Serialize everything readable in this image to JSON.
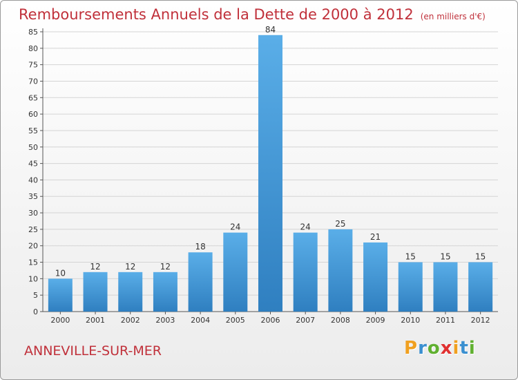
{
  "chart_data": {
    "type": "bar",
    "title": "Remboursements Annuels de la Dette de 2000 à 2012",
    "unit_label": "(en milliers d'€)",
    "categories": [
      "2000",
      "2001",
      "2002",
      "2003",
      "2004",
      "2005",
      "2006",
      "2007",
      "2008",
      "2009",
      "2010",
      "2011",
      "2012"
    ],
    "values": [
      10,
      12,
      12,
      12,
      18,
      24,
      84,
      24,
      25,
      21,
      15,
      15,
      15
    ],
    "xlabel": "",
    "ylabel": "",
    "ylim": [
      0,
      85
    ],
    "yticks": [
      0,
      5,
      10,
      15,
      20,
      25,
      30,
      35,
      40,
      45,
      50,
      55,
      60,
      65,
      70,
      75,
      80,
      85
    ],
    "grid": true,
    "bar_color": "#4a9fde"
  },
  "footer": {
    "commune": "ANNEVILLE-SUR-MER",
    "logo_letters": [
      "P",
      "r",
      "o",
      "x",
      "i",
      "t",
      "i"
    ],
    "logo_colors": [
      "#f0a020",
      "#3a8fd0",
      "#60b030",
      "#e03030",
      "#f0a020",
      "#3a8fd0",
      "#60b030"
    ]
  }
}
